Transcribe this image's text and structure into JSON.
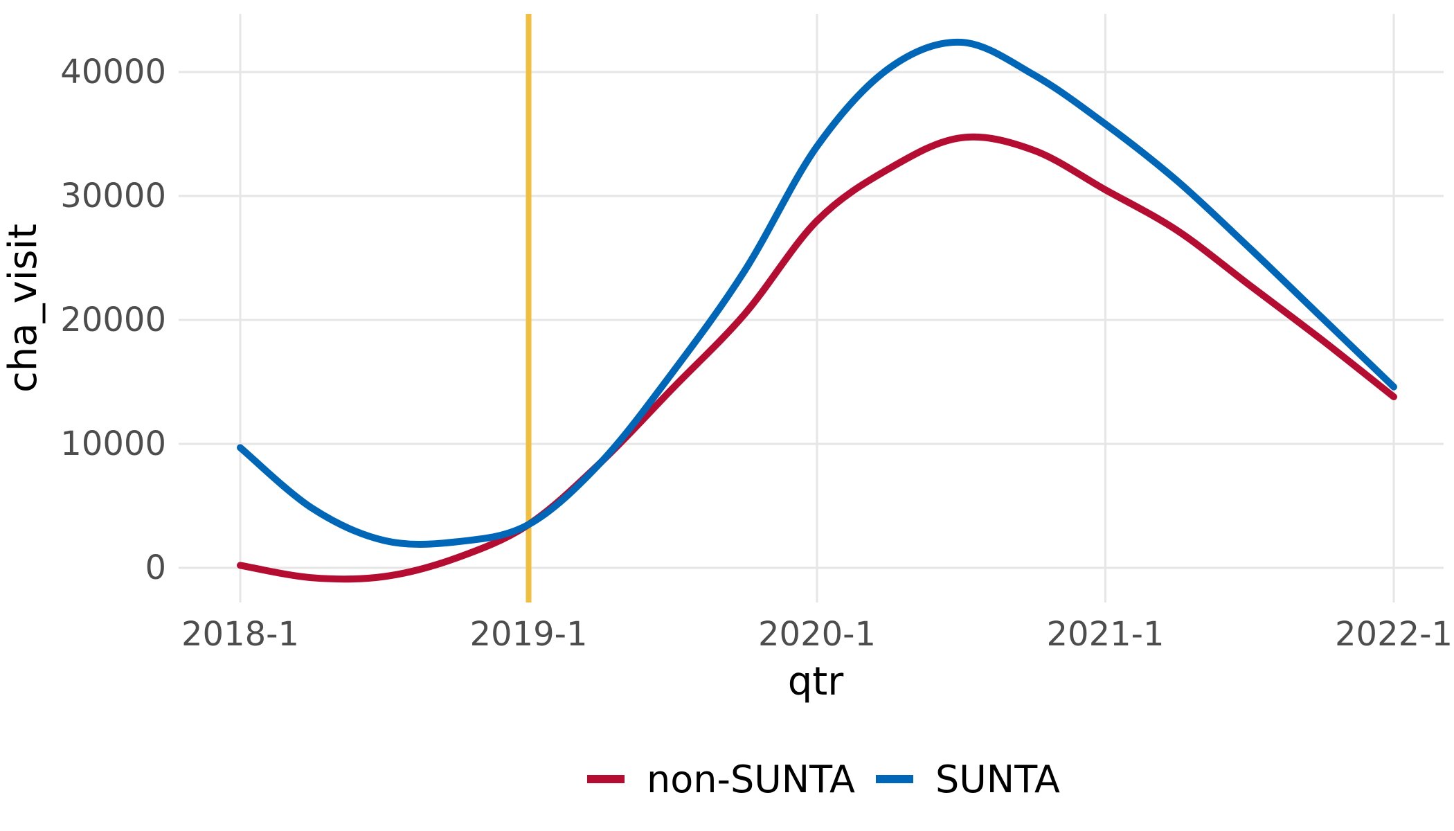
{
  "chart_data": {
    "type": "line",
    "xlabel": "qtr",
    "ylabel": "cha_visit",
    "x_ticks": [
      "2018-1",
      "2019-1",
      "2020-1",
      "2021-1",
      "2022-1"
    ],
    "y_ticks": [
      "0",
      "10000",
      "20000",
      "30000",
      "40000"
    ],
    "xlim": [
      0,
      16
    ],
    "ylim": [
      -3000,
      45000
    ],
    "grid": true,
    "legend_position": "bottom",
    "reference_line": {
      "x": 4,
      "color": "#F2BE3E"
    },
    "x": [
      0,
      1,
      2,
      3,
      4,
      5,
      6,
      7,
      8,
      9,
      10,
      11,
      12,
      13,
      14,
      15,
      16
    ],
    "series": [
      {
        "name": "non-SUNTA",
        "color": "#B50D32",
        "values": [
          200,
          -800,
          -700,
          800,
          3500,
          8500,
          14500,
          20500,
          28000,
          32200,
          34700,
          33700,
          30500,
          27200,
          22800,
          18400,
          13800
        ]
      },
      {
        "name": "SUNTA",
        "color": "#0066B8",
        "values": [
          9700,
          4800,
          2200,
          2100,
          3500,
          8500,
          15800,
          24000,
          34000,
          40300,
          42400,
          39800,
          35800,
          31200,
          25800,
          20200,
          14600
        ]
      }
    ]
  }
}
